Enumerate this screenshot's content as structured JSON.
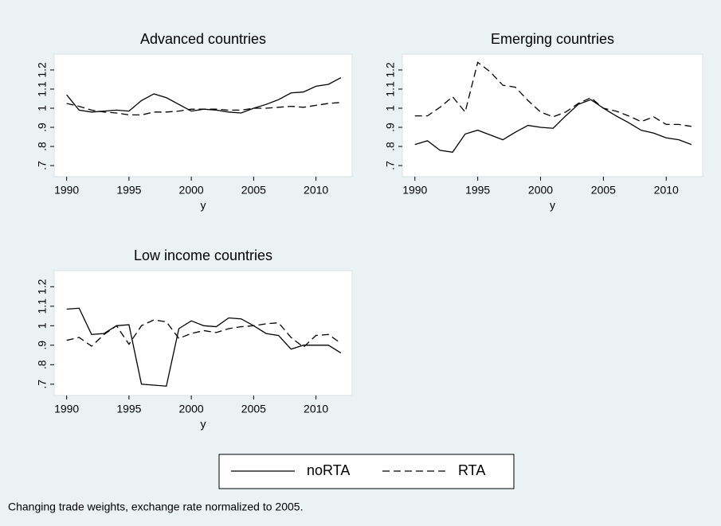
{
  "chart_data": [
    {
      "type": "line",
      "title": "Advanced countries",
      "x_label": "y",
      "x": [
        1990,
        1991,
        1992,
        1993,
        1994,
        1995,
        1996,
        1997,
        1998,
        1999,
        2000,
        2001,
        2002,
        2003,
        2004,
        2005,
        2006,
        2007,
        2008,
        2009,
        2010,
        2011,
        2012
      ],
      "series": [
        {
          "name": "noRTA",
          "color": "#000000",
          "line_style": "solid",
          "values": [
            1.07,
            0.99,
            0.98,
            0.985,
            0.99,
            0.985,
            1.04,
            1.075,
            1.055,
            1.02,
            0.985,
            0.995,
            0.99,
            0.98,
            0.975,
            1.0,
            1.02,
            1.045,
            1.08,
            1.085,
            1.115,
            1.125,
            1.16
          ]
        },
        {
          "name": "RTA",
          "color": "#000000",
          "line_style": "dashed",
          "values": [
            1.025,
            1.01,
            0.99,
            0.98,
            0.975,
            0.965,
            0.965,
            0.98,
            0.98,
            0.985,
            0.995,
            0.995,
            0.995,
            0.99,
            0.99,
            1.0,
            1.0,
            1.005,
            1.01,
            1.005,
            1.015,
            1.025,
            1.03
          ]
        }
      ],
      "xlim": [
        1989,
        2012.9
      ],
      "xticks": [
        1990,
        1995,
        2000,
        2005,
        2010
      ],
      "ylim": [
        0.642,
        1.283
      ],
      "yticks": [
        {
          "value": 0.7,
          "label": ".7"
        },
        {
          "value": 0.8,
          "label": ".8"
        },
        {
          "value": 0.9,
          "label": ".9"
        },
        1,
        1.1,
        1.2
      ]
    },
    {
      "type": "line",
      "title": "Emerging countries",
      "x_label": "y",
      "x": [
        1990,
        1991,
        1992,
        1993,
        1994,
        1995,
        1996,
        1997,
        1998,
        1999,
        2000,
        2001,
        2002,
        2003,
        2004,
        2005,
        2006,
        2007,
        2008,
        2009,
        2010,
        2011,
        2012
      ],
      "series": [
        {
          "name": "noRTA",
          "color": "#000000",
          "line_style": "solid",
          "values": [
            0.81,
            0.83,
            0.78,
            0.77,
            0.865,
            0.885,
            0.86,
            0.835,
            0.875,
            0.91,
            0.9,
            0.895,
            0.96,
            1.02,
            1.045,
            1.0,
            0.96,
            0.925,
            0.885,
            0.87,
            0.845,
            0.835,
            0.81
          ]
        },
        {
          "name": "RTA",
          "color": "#000000",
          "line_style": "dashed",
          "values": [
            0.96,
            0.96,
            1.005,
            1.06,
            0.98,
            1.24,
            1.19,
            1.12,
            1.11,
            1.04,
            0.98,
            0.955,
            0.98,
            1.025,
            1.055,
            1.0,
            0.985,
            0.96,
            0.93,
            0.955,
            0.915,
            0.915,
            0.905
          ]
        }
      ],
      "xlim": [
        1989,
        2012.9
      ],
      "xticks": [
        1990,
        1995,
        2000,
        2005,
        2010
      ],
      "ylim": [
        0.642,
        1.283
      ],
      "yticks": [
        {
          "value": 0.7,
          "label": ".7"
        },
        {
          "value": 0.8,
          "label": ".8"
        },
        {
          "value": 0.9,
          "label": ".9"
        },
        1,
        1.1,
        1.2
      ]
    },
    {
      "type": "line",
      "title": "Low income countries",
      "x_label": "y",
      "x": [
        1990,
        1991,
        1992,
        1993,
        1994,
        1995,
        1996,
        1997,
        1998,
        1999,
        2000,
        2001,
        2002,
        2003,
        2004,
        2005,
        2006,
        2007,
        2008,
        2009,
        2010,
        2011,
        2012
      ],
      "series": [
        {
          "name": "noRTA",
          "color": "#000000",
          "line_style": "solid",
          "values": [
            1.085,
            1.09,
            0.955,
            0.96,
            1.0,
            1.005,
            0.7,
            0.695,
            0.69,
            0.985,
            1.025,
            1.0,
            0.995,
            1.04,
            1.035,
            1.0,
            0.96,
            0.95,
            0.88,
            0.9,
            0.9,
            0.9,
            0.86
          ]
        },
        {
          "name": "RTA",
          "color": "#000000",
          "line_style": "dashed",
          "values": [
            0.925,
            0.94,
            0.895,
            0.955,
            1.0,
            0.905,
            1.0,
            1.03,
            1.02,
            0.935,
            0.96,
            0.975,
            0.965,
            0.985,
            0.995,
            1.0,
            1.01,
            1.015,
            0.94,
            0.89,
            0.95,
            0.955,
            0.91
          ]
        }
      ],
      "xlim": [
        1989,
        2012.9
      ],
      "xticks": [
        1990,
        1995,
        2000,
        2005,
        2010
      ],
      "ylim": [
        0.642,
        1.283
      ],
      "yticks": [
        {
          "value": 0.7,
          "label": ".7"
        },
        {
          "value": 0.8,
          "label": ".8"
        },
        {
          "value": 0.9,
          "label": ".9"
        },
        1,
        1.1,
        1.2
      ]
    }
  ],
  "note": "Changing trade weights, exchange rate normalized to 2005."
}
